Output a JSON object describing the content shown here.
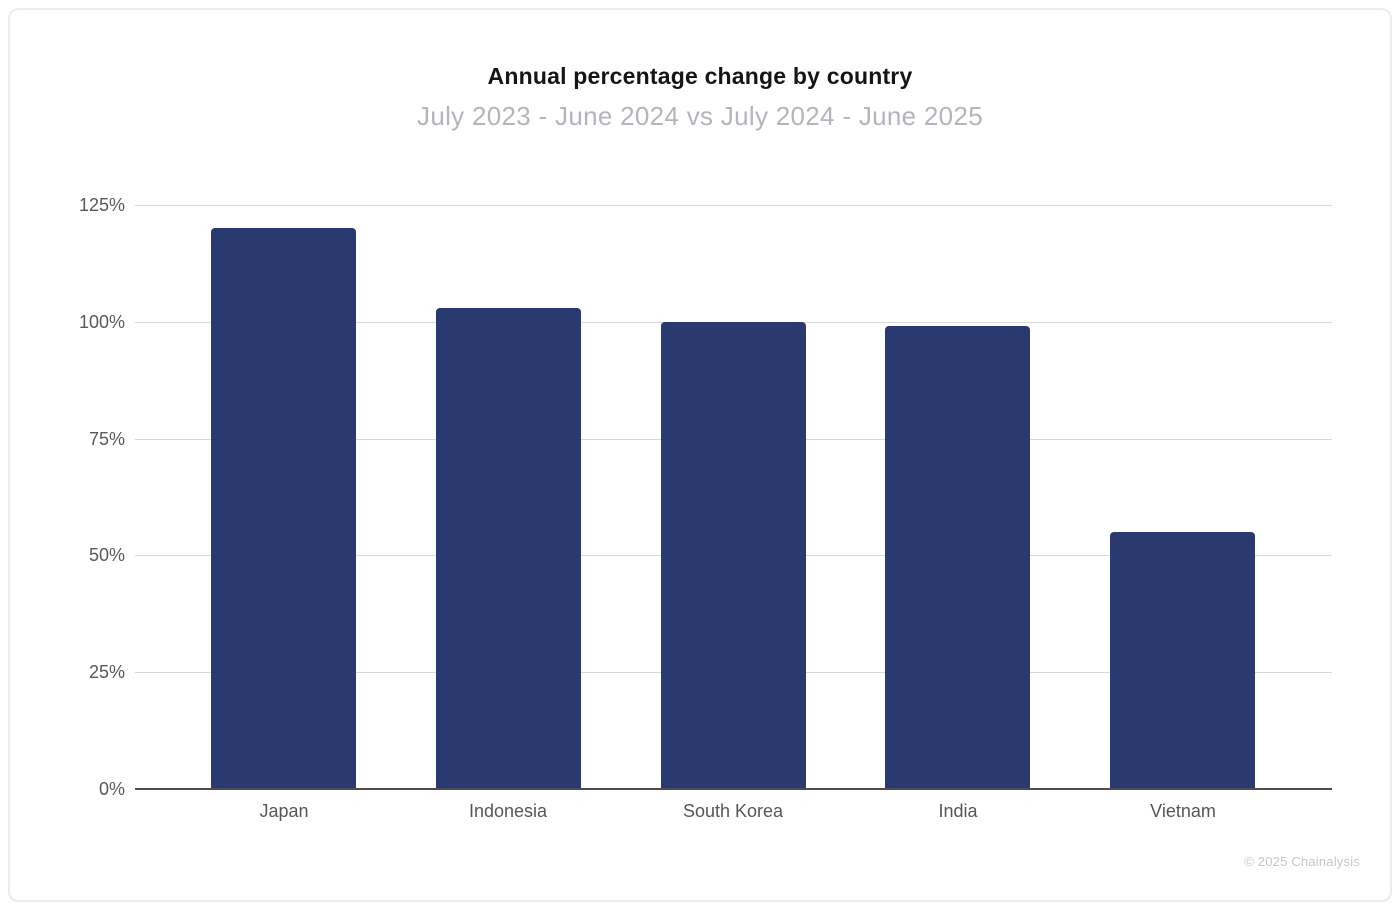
{
  "card": {
    "watermark": "© 2025 Chainalysis"
  },
  "chart_data": {
    "type": "bar",
    "title": "Annual percentage change by country",
    "subtitle": "July 2023 - June 2024 vs July 2024 - June 2025",
    "categories": [
      "Japan",
      "Indonesia",
      "South Korea",
      "India",
      "Vietnam"
    ],
    "values": [
      120,
      103,
      100,
      99,
      55
    ],
    "unit": "%",
    "xlabel": "",
    "ylabel": "",
    "ylim": [
      0,
      125
    ],
    "yticks": [
      0,
      25,
      50,
      75,
      100,
      125
    ],
    "ytick_labels": [
      "0%",
      "25%",
      "50%",
      "75%",
      "100%",
      "125%"
    ],
    "grid": true,
    "legend": "none",
    "bar_color": "#2a3a70"
  }
}
